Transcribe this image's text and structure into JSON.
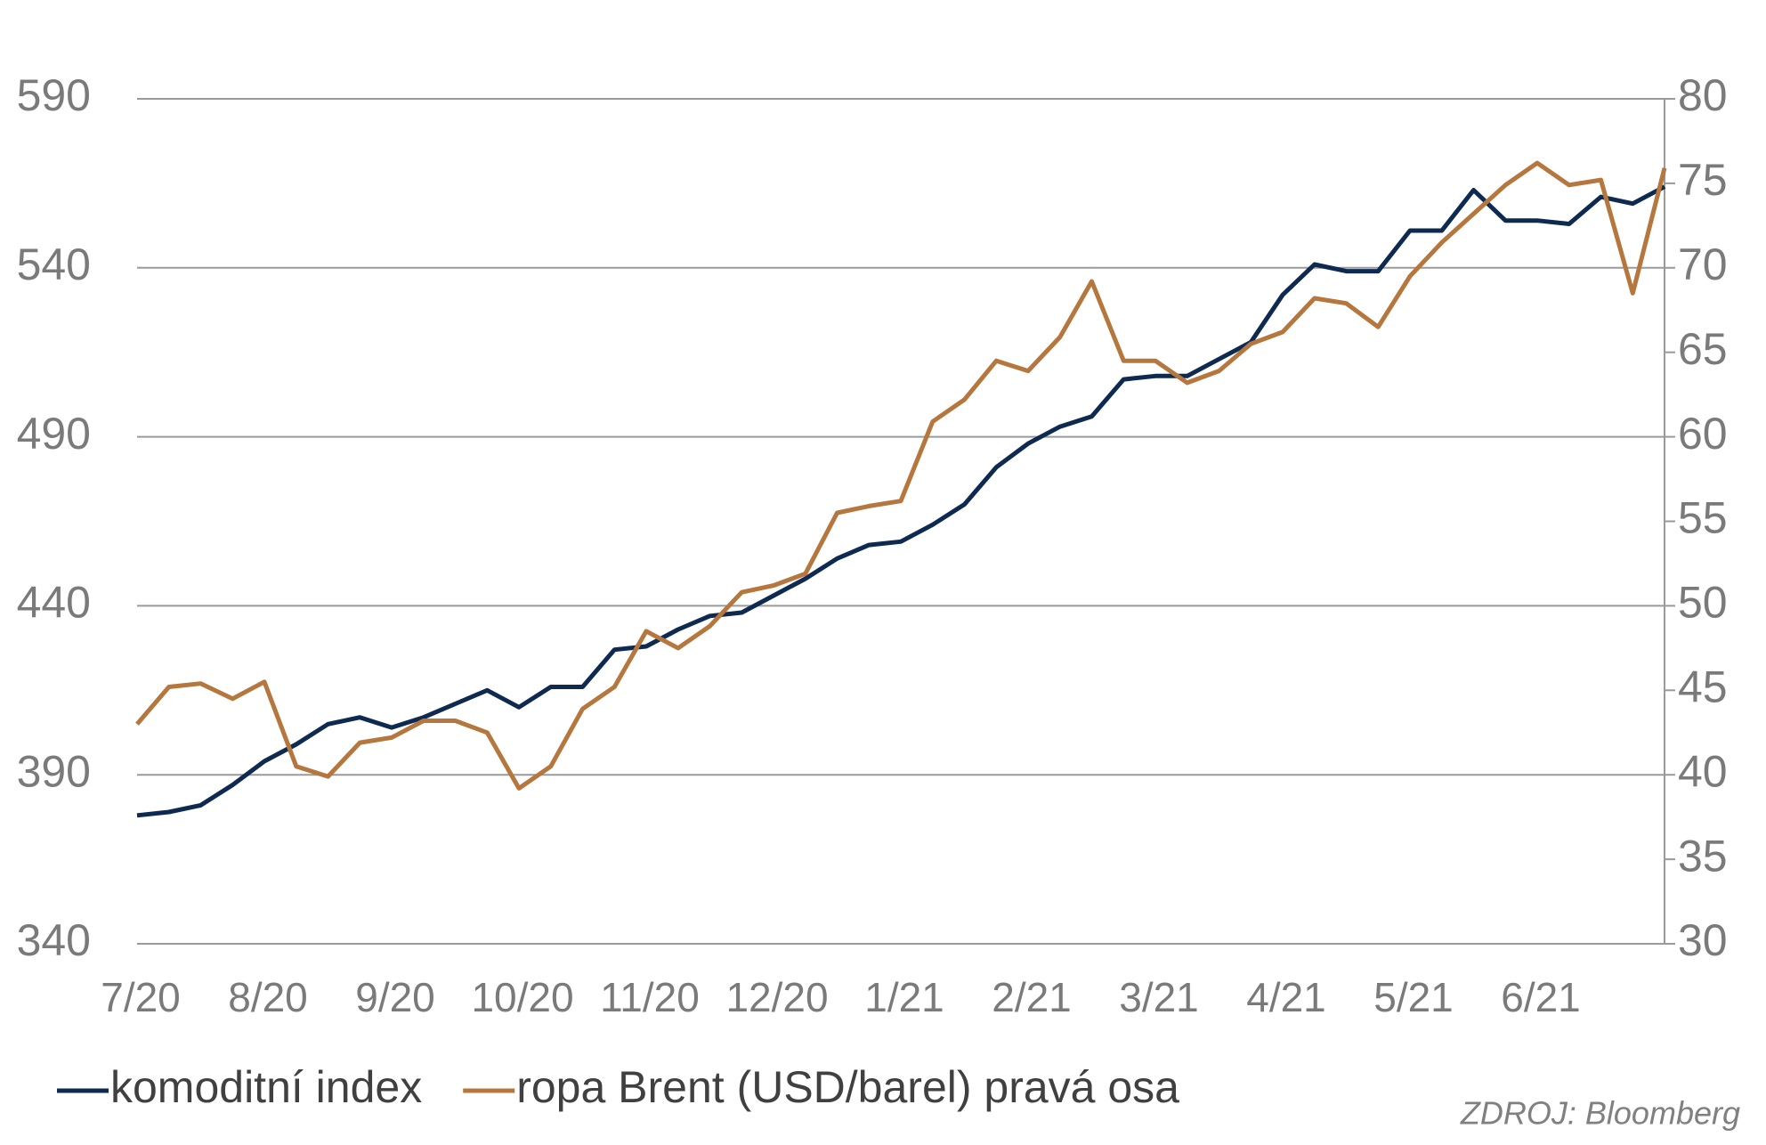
{
  "chart_data": {
    "type": "line",
    "source": "ZDROJ: Bloomberg",
    "xlim": [
      0,
      12
    ],
    "xticks": [
      {
        "value": 0,
        "label": "7/20"
      },
      {
        "value": 1,
        "label": "8/20"
      },
      {
        "value": 2,
        "label": "9/20"
      },
      {
        "value": 3,
        "label": "10/20"
      },
      {
        "value": 4,
        "label": "11/20"
      },
      {
        "value": 5,
        "label": "12/20"
      },
      {
        "value": 6,
        "label": "1/21"
      },
      {
        "value": 7,
        "label": "2/21"
      },
      {
        "value": 8,
        "label": "3/21"
      },
      {
        "value": 9,
        "label": "4/21"
      },
      {
        "value": 10,
        "label": "5/21"
      },
      {
        "value": 11,
        "label": "6/21"
      }
    ],
    "ylim": [
      340,
      590
    ],
    "yticks": [
      340,
      390,
      440,
      490,
      540,
      590
    ],
    "y2lim": [
      30,
      80
    ],
    "y2ticks": [
      30,
      35,
      40,
      45,
      50,
      55,
      60,
      65,
      70,
      75,
      80
    ],
    "grid": true,
    "x": [
      0,
      0.25,
      0.5,
      0.75,
      1,
      1.25,
      1.5,
      1.75,
      2,
      2.25,
      2.5,
      2.75,
      3,
      3.25,
      3.5,
      3.75,
      4,
      4.25,
      4.5,
      4.75,
      5,
      5.25,
      5.5,
      5.75,
      6,
      6.25,
      6.5,
      6.75,
      7,
      7.25,
      7.5,
      7.75,
      8,
      8.25,
      8.5,
      8.75,
      9,
      9.25,
      9.5,
      9.75,
      10,
      10.25,
      10.5,
      10.75,
      11,
      11.25,
      11.5,
      11.75,
      12
    ],
    "series": [
      {
        "name": "komoditní index",
        "color": "#0e2a50",
        "values": [
          378,
          379,
          381,
          387,
          394,
          399,
          405,
          407,
          404,
          407,
          411,
          415,
          410,
          416,
          416,
          427,
          428,
          433,
          437,
          438,
          443,
          448,
          454,
          458,
          459,
          464,
          470,
          481,
          488,
          493,
          496,
          507,
          508,
          508,
          513,
          518,
          532,
          541,
          539,
          539,
          551,
          551,
          563,
          554,
          554,
          553,
          561,
          559,
          564
        ]
      },
      {
        "name": "ropa Brent (USD/barel) pravá osa",
        "color": "#b5773d",
        "axis": "y2",
        "values": [
          43.0,
          45.2,
          45.4,
          44.5,
          45.5,
          40.5,
          39.9,
          41.9,
          42.2,
          43.2,
          43.2,
          42.5,
          39.2,
          40.5,
          43.9,
          45.2,
          48.5,
          47.5,
          48.8,
          50.8,
          51.2,
          51.9,
          55.5,
          55.9,
          56.2,
          60.9,
          62.2,
          64.5,
          63.9,
          65.9,
          69.2,
          64.5,
          64.5,
          63.2,
          63.9,
          65.5,
          66.2,
          68.2,
          67.9,
          66.5,
          69.5,
          71.5,
          73.2,
          74.9,
          76.2,
          74.9,
          75.2,
          68.5,
          75.9
        ]
      }
    ]
  }
}
